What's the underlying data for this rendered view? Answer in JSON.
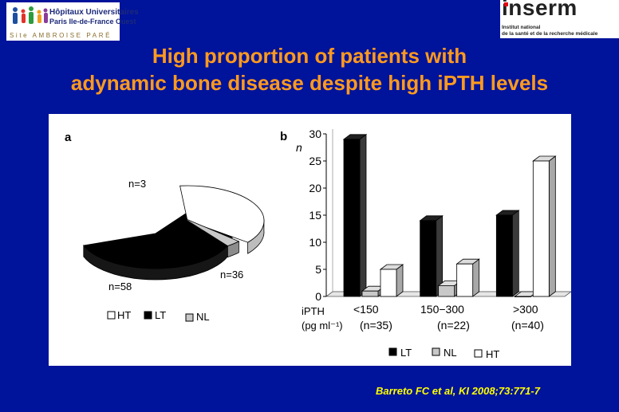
{
  "logos": {
    "left": {
      "line1": "Hôpitaux Universitaires",
      "line2": "Paris Ile-de-France Ouest",
      "line3": "Site AMBROISE PARÉ"
    },
    "right": {
      "brand": "inserm",
      "line1": "Institut national",
      "line2": "de la santé et de la recherche médicale"
    }
  },
  "title": {
    "line1": "High proportion of patients with",
    "line2": "adynamic bone disease despite high iPTH levels"
  },
  "citation": "Barreto FC et al, KI 2008;73:771-7",
  "colors": {
    "background": "#00139b",
    "title": "#ff9a1e",
    "citation": "#ffff00",
    "LT": "#000000",
    "NL": "#c8c8c8",
    "HT": "#ffffff"
  },
  "chart_data": [
    {
      "type": "pie",
      "panel_label": "a",
      "slices": [
        {
          "name": "LT",
          "value": 58,
          "label": "n=58"
        },
        {
          "name": "HT",
          "value": 36,
          "label": "n=36"
        },
        {
          "name": "NL",
          "value": 3,
          "label": "n=3"
        }
      ],
      "legend": [
        "HT",
        "LT",
        "NL"
      ],
      "legend_position": "bottom"
    },
    {
      "type": "bar",
      "panel_label": "b",
      "ylabel": "n",
      "ylim": [
        0,
        30
      ],
      "yticks": [
        0,
        5,
        10,
        15,
        20,
        25,
        30
      ],
      "xlabel_line1": "iPTH",
      "xlabel_line2": "(pg ml⁻¹)",
      "categories": [
        "<150",
        "150−300",
        ">300"
      ],
      "category_counts": [
        "(n=35)",
        "(n=22)",
        "(n=40)"
      ],
      "series": [
        {
          "name": "LT",
          "values": [
            29,
            14,
            15
          ]
        },
        {
          "name": "NL",
          "values": [
            1,
            2,
            0
          ]
        },
        {
          "name": "HT",
          "values": [
            5,
            6,
            25
          ]
        }
      ],
      "legend_position": "bottom",
      "grid": false
    }
  ]
}
